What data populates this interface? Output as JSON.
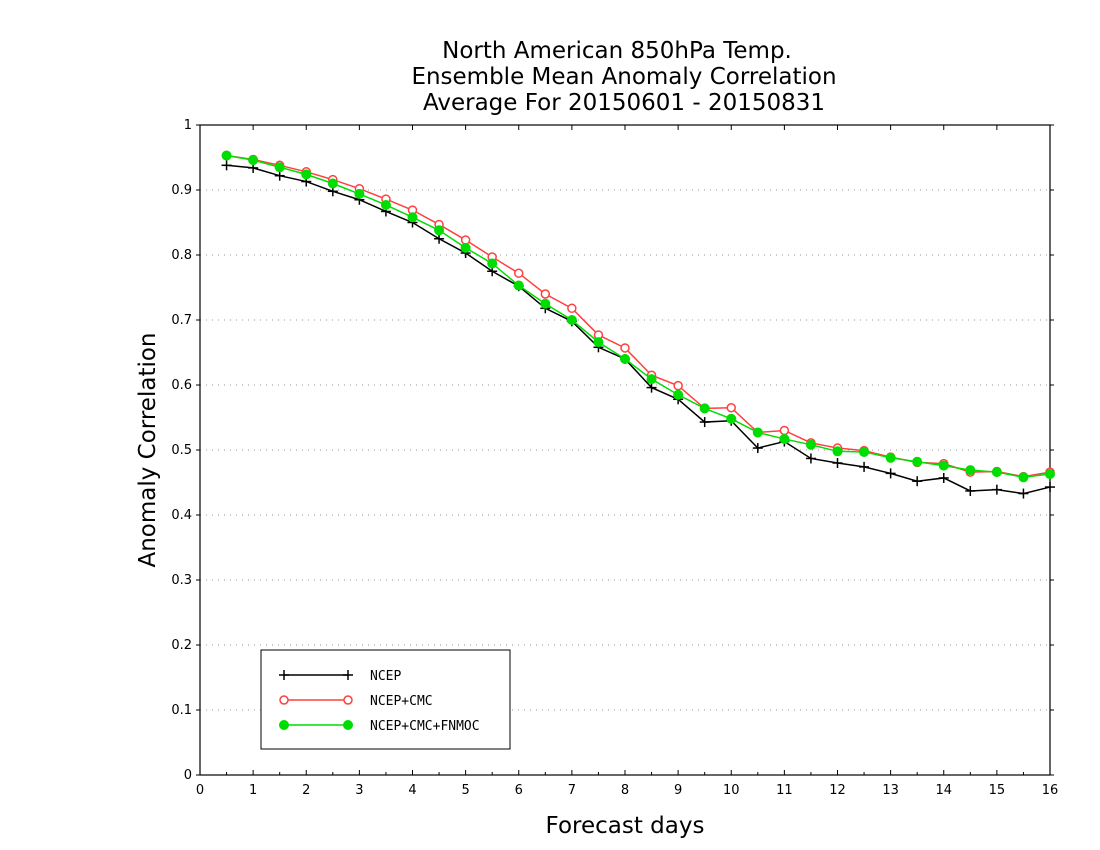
{
  "chart_data": {
    "type": "line",
    "title_lines": [
      "North American 850hPa Temp.",
      "Ensemble Mean Anomaly Correlation",
      "Average For 20150601 - 20150831"
    ],
    "xlabel": "Forecast days",
    "ylabel": "Anomaly Correlation",
    "xlim": [
      0,
      16
    ],
    "ylim": [
      0,
      1
    ],
    "xticks": [
      "0",
      "1",
      "2",
      "3",
      "4",
      "5",
      "6",
      "7",
      "8",
      "9",
      "10",
      "11",
      "12",
      "13",
      "14",
      "15",
      "16"
    ],
    "yticks": [
      "0",
      "0.1",
      "0.2",
      "0.3",
      "0.4",
      "0.5",
      "0.6",
      "0.7",
      "0.8",
      "0.9",
      "1"
    ],
    "grid": "dotted horizontal",
    "legend_position": "bottom-left",
    "x": [
      0.5,
      1,
      1.5,
      2,
      2.5,
      3,
      3.5,
      4,
      4.5,
      5,
      5.5,
      6,
      6.5,
      7,
      7.5,
      8,
      8.5,
      9,
      9.5,
      10,
      10.5,
      11,
      11.5,
      12,
      12.5,
      13,
      13.5,
      14,
      14.5,
      15,
      15.5,
      16
    ],
    "series": [
      {
        "name": "NCEP",
        "color": "#000000",
        "marker": "plus",
        "values": [
          0.938,
          0.934,
          0.922,
          0.913,
          0.898,
          0.885,
          0.867,
          0.85,
          0.825,
          0.803,
          0.775,
          0.752,
          0.718,
          0.698,
          0.658,
          0.64,
          0.596,
          0.578,
          0.543,
          0.545,
          0.503,
          0.513,
          0.487,
          0.48,
          0.474,
          0.464,
          0.452,
          0.457,
          0.437,
          0.439,
          0.433,
          0.443
        ]
      },
      {
        "name": "NCEP+CMC",
        "color": "#ff4040",
        "marker": "open-circle",
        "values": [
          0.953,
          0.947,
          0.938,
          0.928,
          0.916,
          0.902,
          0.886,
          0.869,
          0.847,
          0.823,
          0.797,
          0.772,
          0.74,
          0.718,
          0.677,
          0.657,
          0.615,
          0.599,
          0.564,
          0.565,
          0.527,
          0.53,
          0.511,
          0.503,
          0.499,
          0.489,
          0.481,
          0.479,
          0.466,
          0.467,
          0.459,
          0.466
        ]
      },
      {
        "name": "NCEP+CMC+FNMOC",
        "color": "#00dd00",
        "marker": "filled-circle",
        "values": [
          0.953,
          0.946,
          0.935,
          0.924,
          0.91,
          0.894,
          0.877,
          0.858,
          0.838,
          0.811,
          0.787,
          0.753,
          0.725,
          0.7,
          0.666,
          0.64,
          0.609,
          0.585,
          0.564,
          0.548,
          0.527,
          0.517,
          0.508,
          0.498,
          0.497,
          0.488,
          0.482,
          0.476,
          0.469,
          0.466,
          0.458,
          0.463
        ]
      }
    ]
  }
}
